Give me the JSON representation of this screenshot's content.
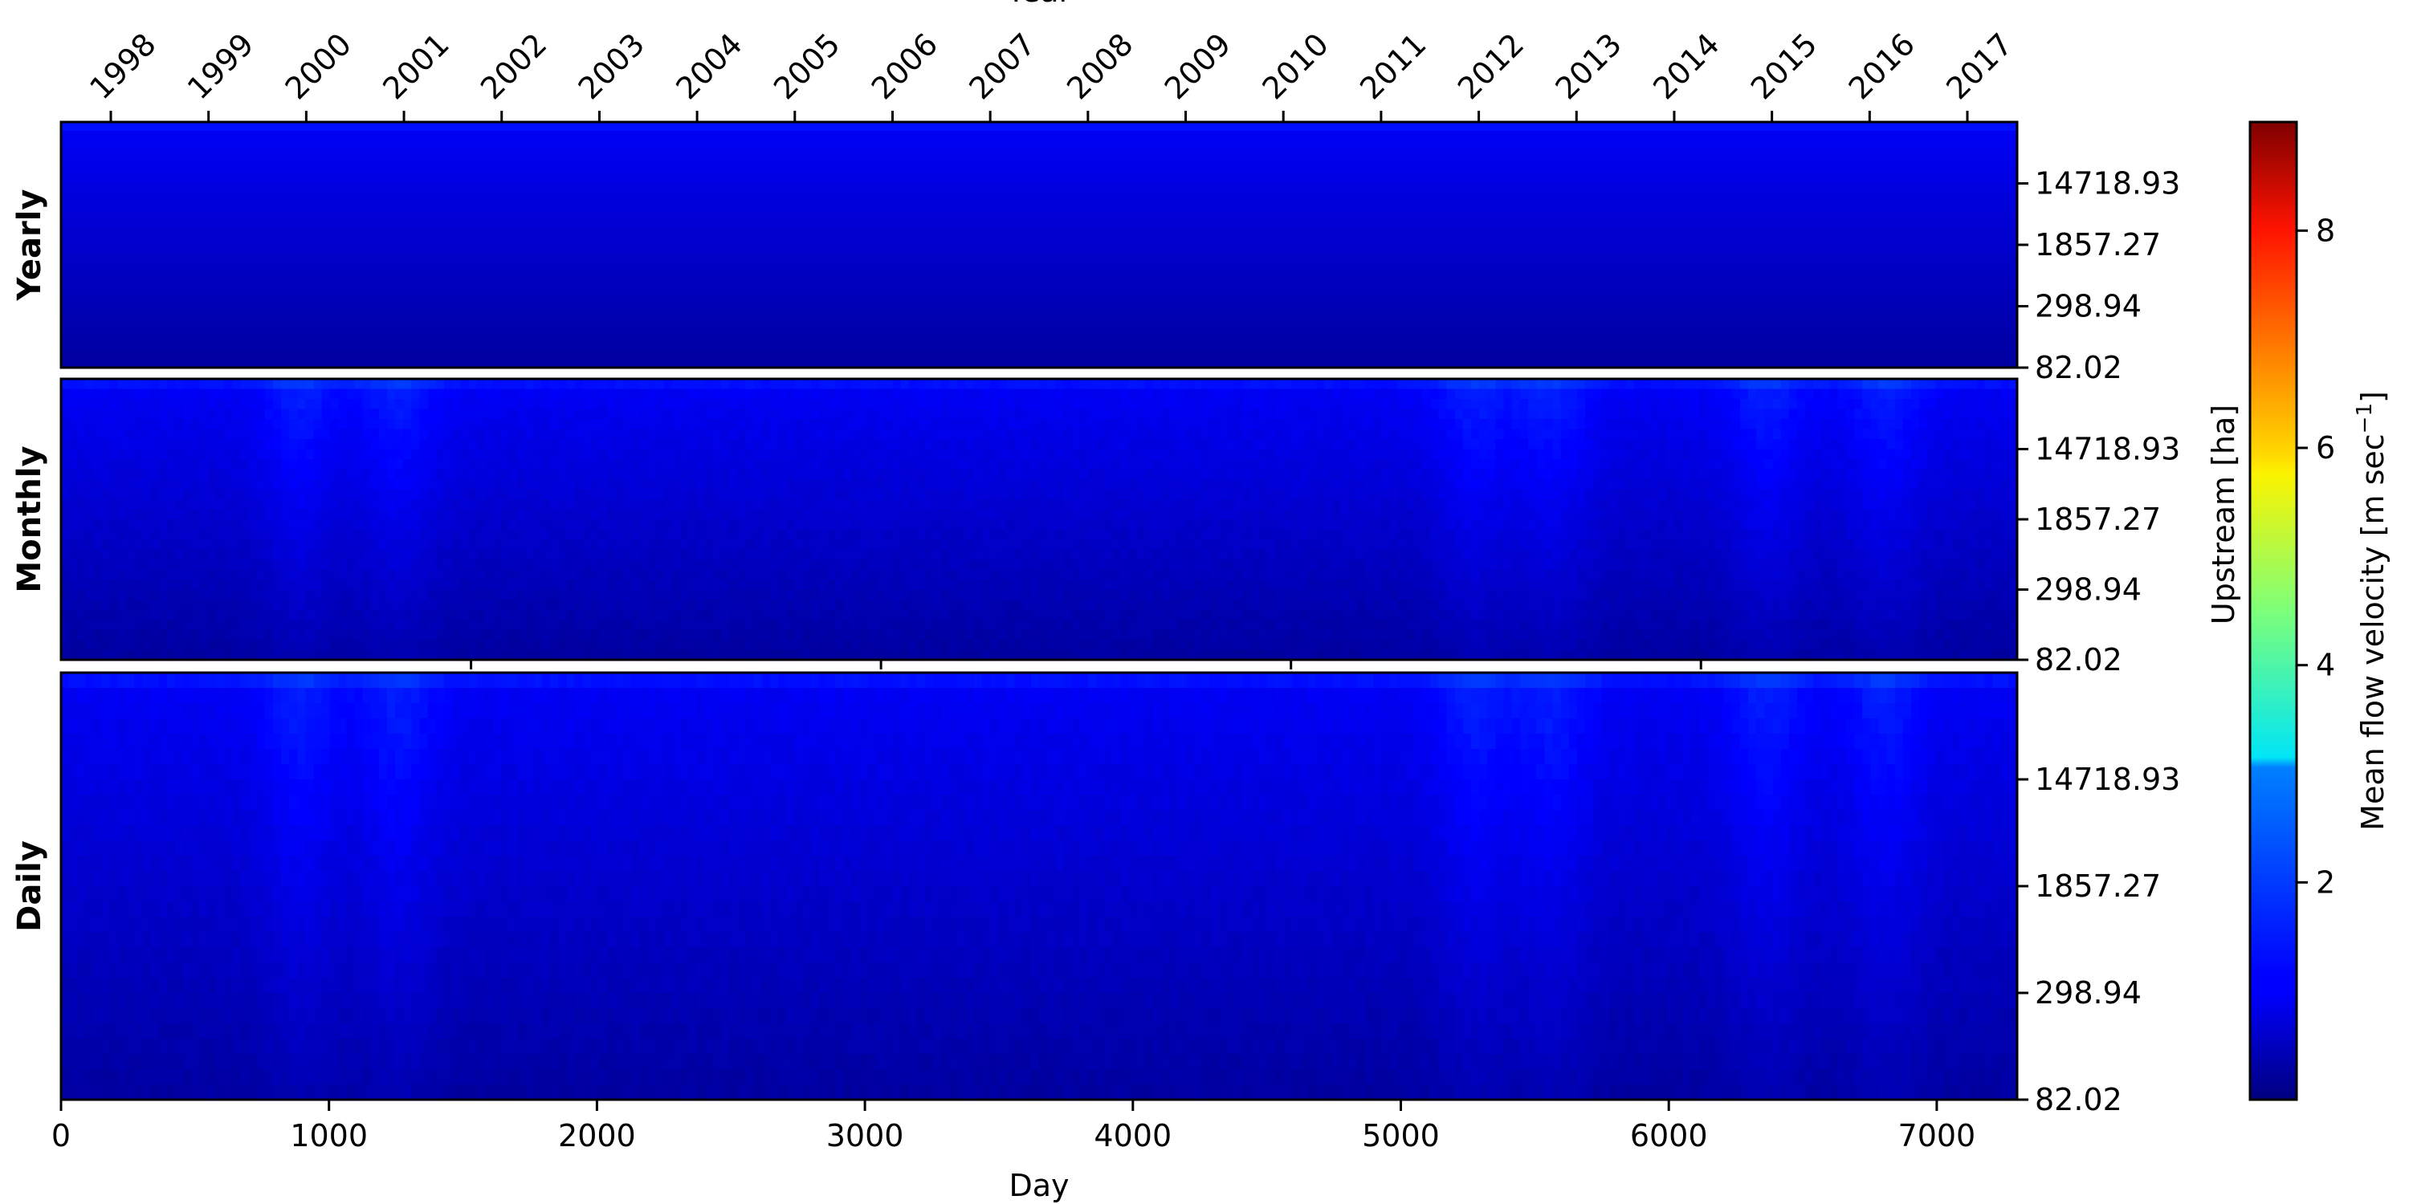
{
  "chart_data": {
    "type": "heatmap",
    "panels": [
      {
        "label": "Yearly",
        "columns": 20
      },
      {
        "label": "Monthly",
        "columns": 240
      },
      {
        "label": "Daily",
        "columns": 730
      }
    ],
    "x_top": {
      "label": "Year",
      "ticks": [
        "1998",
        "1999",
        "2000",
        "2001",
        "2002",
        "2003",
        "2004",
        "2005",
        "2006",
        "2007",
        "2008",
        "2009",
        "2010",
        "2011",
        "2012",
        "2013",
        "2014",
        "2015",
        "2016",
        "2017"
      ]
    },
    "x_bottom": {
      "label": "Day",
      "ticks": [
        0,
        1000,
        2000,
        3000,
        4000,
        5000,
        6000,
        7000
      ],
      "range": [
        0,
        7300
      ]
    },
    "y": {
      "label": "Upstream [ha]",
      "ticks": [
        "14718.93",
        "1857.27",
        "298.94",
        "82.02"
      ]
    },
    "colorbar": {
      "label": "Mean flow velocity [m sec",
      "label_superscript": "−1",
      "label_suffix": "]",
      "ticks": [
        2,
        4,
        6,
        8
      ],
      "range": [
        0,
        9
      ],
      "colormap": "jet"
    },
    "value_range_observed": [
      0.1,
      1.6
    ],
    "grid": false
  }
}
